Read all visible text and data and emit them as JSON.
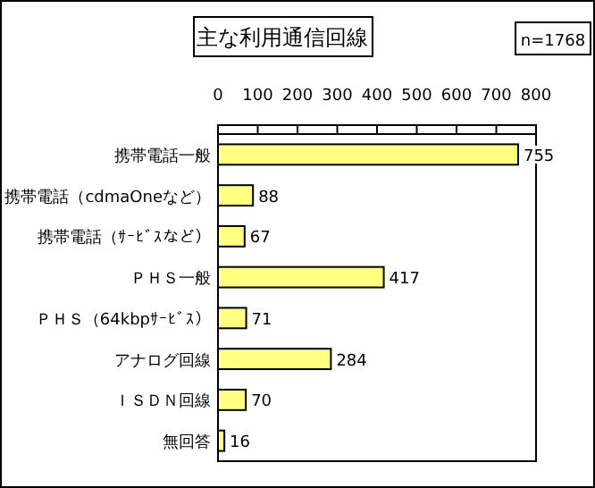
{
  "chart_data": {
    "type": "bar",
    "orientation": "horizontal",
    "title": "主な利用通信回線",
    "annotations": [
      "n=1768"
    ],
    "categories": [
      "携帯電話一般",
      "携帯電話（cdmaOneなど）",
      "携帯電話（ｻｰﾋﾞｽなど）",
      "ＰＨＳ一般",
      "ＰＨＳ（64kbpｻｰﾋﾞｽ）",
      "アナログ回線",
      "ＩＳＤＮ回線",
      "無回答"
    ],
    "values": [
      755,
      88,
      67,
      417,
      71,
      284,
      70,
      16
    ],
    "color": "#ffff80",
    "xlim": [
      0,
      800
    ],
    "xticks": [
      0,
      100,
      200,
      300,
      400,
      500,
      600,
      700,
      800
    ],
    "data_labels": true
  }
}
